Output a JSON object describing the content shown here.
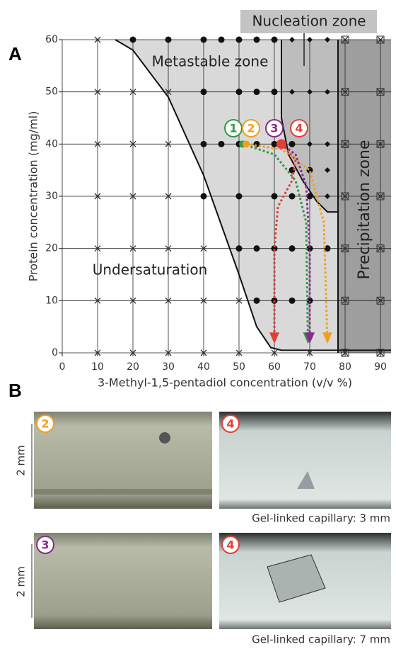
{
  "panel_a_label": "A",
  "chart_data": {
    "type": "scatter",
    "x_label": "3-Methyl-1,5-pentadiol concentration (v/v %)",
    "y_label": "Protein concentration (mg/ml)",
    "xlim": [
      0,
      93
    ],
    "ylim": [
      0,
      60
    ],
    "xticks": [
      0,
      10,
      20,
      30,
      40,
      50,
      60,
      70,
      80,
      90
    ],
    "yticks": [
      0,
      10,
      20,
      30,
      40,
      50,
      60
    ],
    "grid": true,
    "annotations": [
      "Metastable zone",
      "Nucleation zone",
      "Undersaturation",
      "Precipitation zone"
    ],
    "markers": [
      {
        "marker": "cross",
        "color": "#333333",
        "x": [
          10,
          10,
          20,
          30,
          10,
          20,
          30,
          10,
          20,
          30,
          10,
          20,
          30,
          40,
          10,
          20,
          30,
          40,
          50,
          10,
          20,
          30,
          40,
          50,
          60,
          70
        ],
        "y": [
          60,
          50,
          50,
          50,
          40,
          40,
          40,
          30,
          30,
          30,
          20,
          20,
          20,
          20,
          10,
          10,
          10,
          10,
          10,
          0,
          0,
          0,
          0,
          0,
          0,
          0
        ]
      },
      {
        "marker": "dot",
        "color": "#111111",
        "x": [
          20,
          30,
          40,
          45,
          50,
          55,
          60,
          40,
          50,
          55,
          60,
          40,
          45,
          50,
          55,
          60,
          65,
          65,
          70,
          40,
          50,
          60,
          65,
          70,
          50,
          55,
          60,
          65,
          70,
          75,
          55,
          60,
          65,
          70
        ],
        "y": [
          60,
          60,
          60,
          60,
          60,
          60,
          60,
          50,
          50,
          50,
          50,
          40,
          40,
          40,
          40,
          40,
          40,
          35,
          35,
          30,
          30,
          30,
          30,
          30,
          20,
          20,
          20,
          20,
          20,
          20,
          10,
          10,
          10,
          10
        ]
      },
      {
        "marker": "diamond",
        "color": "#111111",
        "x": [
          65,
          70,
          75,
          65,
          70,
          75,
          70,
          75,
          75,
          75
        ],
        "y": [
          60,
          60,
          60,
          50,
          50,
          50,
          40,
          40,
          35,
          30
        ]
      },
      {
        "marker": "boxed",
        "color": "#333333",
        "x": [
          80,
          90,
          80,
          90,
          80,
          90,
          80,
          90,
          80,
          90,
          80,
          90,
          80,
          90
        ],
        "y": [
          60,
          60,
          50,
          50,
          40,
          40,
          30,
          30,
          20,
          20,
          10,
          10,
          0,
          0
        ]
      }
    ],
    "boundaries": [
      {
        "x": [
          15,
          20,
          30,
          40,
          50,
          55,
          59,
          62,
          93
        ],
        "y": [
          60,
          58,
          49,
          34,
          15,
          5,
          1,
          0.5,
          0.5
        ]
      },
      {
        "x": [
          62,
          62,
          64,
          68,
          72,
          75,
          78
        ],
        "y": [
          60,
          45,
          38,
          33,
          29,
          27,
          27
        ]
      },
      {
        "x": [
          78,
          78
        ],
        "y": [
          60,
          0
        ]
      }
    ],
    "trajectories": [
      {
        "label": "1",
        "color": "#2e9b44",
        "x": [
          51,
          60,
          66,
          69,
          69.5
        ],
        "y": [
          40,
          38,
          33,
          25,
          2
        ]
      },
      {
        "label": "2",
        "color": "#f0a020",
        "x": [
          52,
          62,
          70,
          74,
          75
        ],
        "y": [
          40,
          39,
          35,
          25,
          2
        ]
      },
      {
        "label": "3",
        "color": "#8b2a8e",
        "x": [
          62,
          66,
          69,
          70,
          70
        ],
        "y": [
          40,
          38,
          32,
          20,
          2
        ]
      },
      {
        "label": "4",
        "color": "#e0403a",
        "x": [
          62,
          66,
          65,
          61,
          60,
          60
        ],
        "y": [
          40,
          37,
          33,
          28,
          20,
          2
        ]
      }
    ]
  },
  "panel_b": {
    "label": "B",
    "photos": [
      {
        "label": "2",
        "color": "#f0a020",
        "scale": "2 mm"
      },
      {
        "label": "4",
        "color": "#e0403a"
      },
      {
        "label": "3",
        "color": "#8b2a8e",
        "scale": "2 mm"
      },
      {
        "label": "4",
        "color": "#e0403a"
      }
    ],
    "captions": [
      "Gel-linked capillary: 3 mm",
      "Gel-linked capillary: 7 mm"
    ]
  }
}
